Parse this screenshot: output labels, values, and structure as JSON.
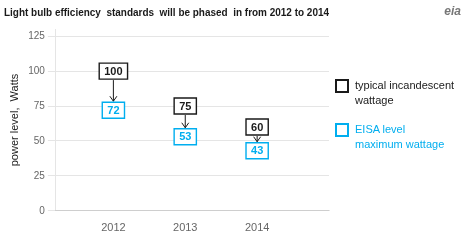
{
  "chart_data": {
    "type": "scatter",
    "title": "Light bulb efficiency  standards  will be phased  in from 2012 to 2014",
    "ylabel": "power level,  Watts",
    "annotations": [
      "eia"
    ],
    "x": [
      2012,
      2013,
      2014
    ],
    "series": [
      {
        "name": "typical incandescent\nwattage",
        "color": "#1a1a1a",
        "values": [
          100,
          75,
          60
        ],
        "marker": "square"
      },
      {
        "name": "EISA level\nmaximum wattage",
        "color": "#00aeef",
        "values": [
          72,
          53,
          43
        ],
        "marker": "square"
      }
    ],
    "xlim": [
      2011.2,
      2015.0
    ],
    "xticks": [
      2012,
      2013,
      2014
    ],
    "ylim": [
      0,
      130
    ],
    "yticks": [
      0,
      25,
      50,
      75,
      100,
      125
    ],
    "grid": "y",
    "legend": "right",
    "data_labels": true
  }
}
